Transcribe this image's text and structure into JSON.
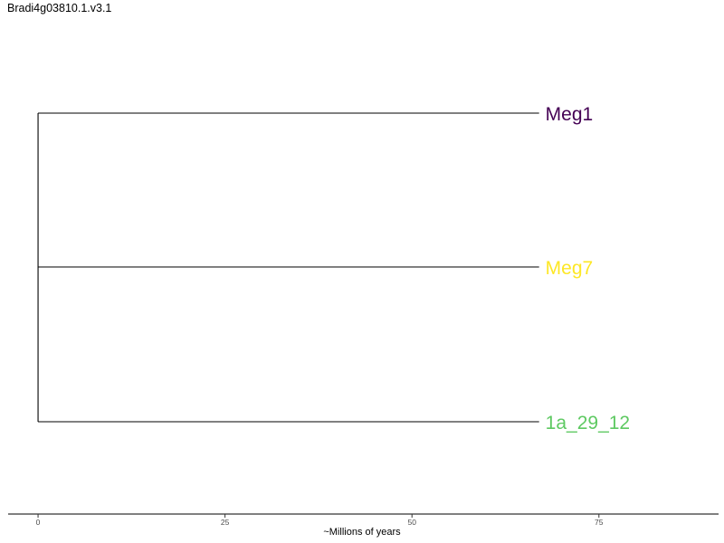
{
  "title": "Bradi4g03810.1.v3.1",
  "tree": {
    "leaves": [
      {
        "name": "Meg1",
        "color": "#440154"
      },
      {
        "name": "Meg7",
        "color": "#FDE725"
      },
      {
        "name": "1a_29_12",
        "color": "#5EC962"
      }
    ],
    "divergence_mya": 67,
    "line_color": "#000000"
  },
  "axis": {
    "label": "~Millions of years",
    "range": [
      -4,
      91
    ],
    "ticks": [
      {
        "value": 0,
        "label": "0"
      },
      {
        "value": 25,
        "label": "25"
      },
      {
        "value": 50,
        "label": "50"
      },
      {
        "value": 75,
        "label": "75"
      }
    ]
  }
}
